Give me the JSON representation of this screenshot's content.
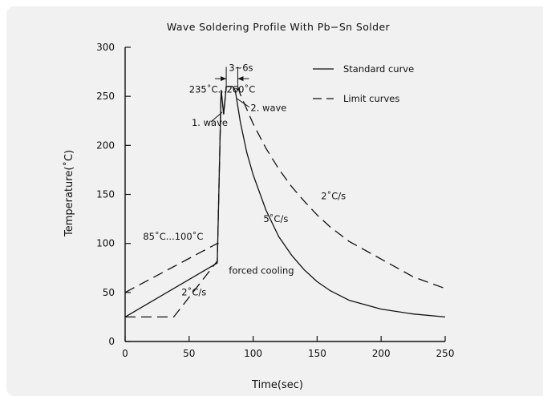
{
  "chart_data": {
    "type": "line",
    "title": "Wave Soldering Profile With Pb−Sn Solder",
    "xlabel": "Time(sec)",
    "ylabel": "Temperature(˚C)",
    "xlim": [
      0,
      250
    ],
    "ylim": [
      0,
      300
    ],
    "xticks": [
      0,
      50,
      100,
      150,
      200,
      250
    ],
    "yticks": [
      0,
      50,
      100,
      150,
      200,
      250,
      300
    ],
    "grid": false,
    "legend_position": "top-right",
    "legend": [
      {
        "label": "Standard curve",
        "style": "solid"
      },
      {
        "label": "Limit curves",
        "style": "dashed"
      }
    ],
    "series": [
      {
        "name": "Standard curve",
        "style": "solid",
        "points": [
          [
            0,
            25
          ],
          [
            72,
            80
          ],
          [
            75,
            256
          ],
          [
            77,
            232
          ],
          [
            79,
            260
          ],
          [
            84,
            260
          ],
          [
            86,
            256
          ],
          [
            90,
            224
          ],
          [
            95,
            193
          ],
          [
            100,
            170
          ],
          [
            110,
            134
          ],
          [
            120,
            107
          ],
          [
            130,
            88
          ],
          [
            140,
            73
          ],
          [
            150,
            61
          ],
          [
            160,
            52
          ],
          [
            175,
            42
          ],
          [
            200,
            33
          ],
          [
            225,
            28
          ],
          [
            250,
            25
          ]
        ]
      },
      {
        "name": "Limit curves",
        "style": "dashed",
        "points": [
          [
            0,
            25
          ],
          [
            38,
            25
          ],
          [
            72,
            82
          ],
          [
            75,
            256
          ],
          [
            77,
            232
          ],
          [
            79,
            260
          ],
          [
            88,
            260
          ],
          [
            90,
            252
          ],
          [
            100,
            222
          ],
          [
            110,
            197
          ],
          [
            120,
            176
          ],
          [
            130,
            158
          ],
          [
            140,
            143
          ],
          [
            150,
            129
          ],
          [
            160,
            117
          ],
          [
            175,
            102
          ],
          [
            200,
            84
          ],
          [
            225,
            66
          ],
          [
            250,
            54
          ]
        ]
      },
      {
        "name": "Limit curves",
        "style": "dashed",
        "points": [
          [
            0,
            50
          ],
          [
            72,
            100
          ],
          [
            73,
            100
          ]
        ]
      }
    ],
    "annotations": [
      {
        "text": "3~6s",
        "x": 81,
        "y": 276
      },
      {
        "text": "235˚C...260˚C",
        "x": 50,
        "y": 254
      },
      {
        "text": "1. wave",
        "x": 52,
        "y": 220
      },
      {
        "text": "2. wave",
        "x": 98,
        "y": 235
      },
      {
        "text": "2˚C/s",
        "x": 153,
        "y": 145
      },
      {
        "text": "5˚C/s",
        "x": 108,
        "y": 122
      },
      {
        "text": "85˚C...100˚C",
        "x": 14,
        "y": 104
      },
      {
        "text": "forced cooling",
        "x": 81,
        "y": 69
      },
      {
        "text": "2˚C/s",
        "x": 44,
        "y": 47
      }
    ]
  }
}
